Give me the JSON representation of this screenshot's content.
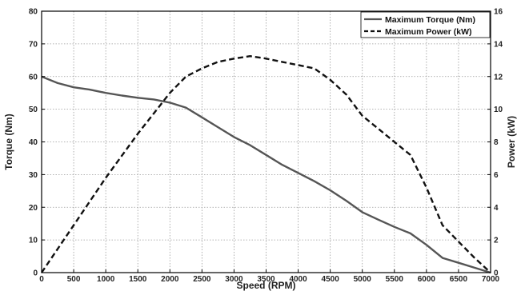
{
  "chart_data": {
    "type": "line",
    "title": "",
    "xlabel": "Speed (RPM)",
    "ylabel_left": "Torque (Nm)",
    "ylabel_right": "Power (kW)",
    "xlim": [
      0,
      7000
    ],
    "ylim_left": [
      0,
      80
    ],
    "ylim_right": [
      0,
      16
    ],
    "x_ticks": [
      0,
      500,
      1000,
      1500,
      2000,
      2500,
      3000,
      3500,
      4000,
      4500,
      5000,
      5500,
      6000,
      6500,
      7000
    ],
    "y_ticks_left": [
      0,
      10,
      20,
      30,
      40,
      50,
      60,
      70,
      80
    ],
    "y_ticks_right": [
      0,
      2,
      4,
      6,
      8,
      10,
      12,
      14,
      16
    ],
    "grid": true,
    "legend_position": "top-right",
    "series": [
      {
        "name": "Maximum Torque (Nm)",
        "axis": "left",
        "style": "solid",
        "color": "#555555",
        "x": [
          0,
          250,
          500,
          750,
          1000,
          1250,
          1500,
          1750,
          2000,
          2250,
          2500,
          2750,
          3000,
          3250,
          3500,
          3750,
          4000,
          4250,
          4500,
          4750,
          5000,
          5250,
          5500,
          5750,
          6000,
          6250,
          6500,
          6750,
          7000
        ],
        "values": [
          60,
          58,
          56.7,
          56,
          55,
          54.2,
          53.5,
          53,
          52,
          50.5,
          47.5,
          44.5,
          41.5,
          39,
          36,
          33,
          30.5,
          28,
          25.2,
          22,
          18.5,
          16.2,
          14,
          12,
          8.5,
          4.5,
          3,
          1.5,
          0
        ]
      },
      {
        "name": "Maximum Power (kW)",
        "axis": "right",
        "style": "dashed",
        "color": "#111111",
        "x": [
          0,
          500,
          1000,
          1500,
          2000,
          2250,
          2500,
          2750,
          3000,
          3250,
          3500,
          3750,
          4000,
          4250,
          4500,
          4750,
          5000,
          5250,
          5500,
          5750,
          6000,
          6250,
          6500,
          6750,
          7000
        ],
        "values": [
          0,
          2.9,
          5.8,
          8.5,
          11,
          12,
          12.5,
          12.9,
          13.1,
          13.25,
          13.1,
          12.9,
          12.7,
          12.5,
          11.8,
          10.9,
          9.6,
          8.8,
          8,
          7.2,
          5.2,
          2.9,
          1.9,
          0.9,
          0
        ]
      }
    ]
  }
}
